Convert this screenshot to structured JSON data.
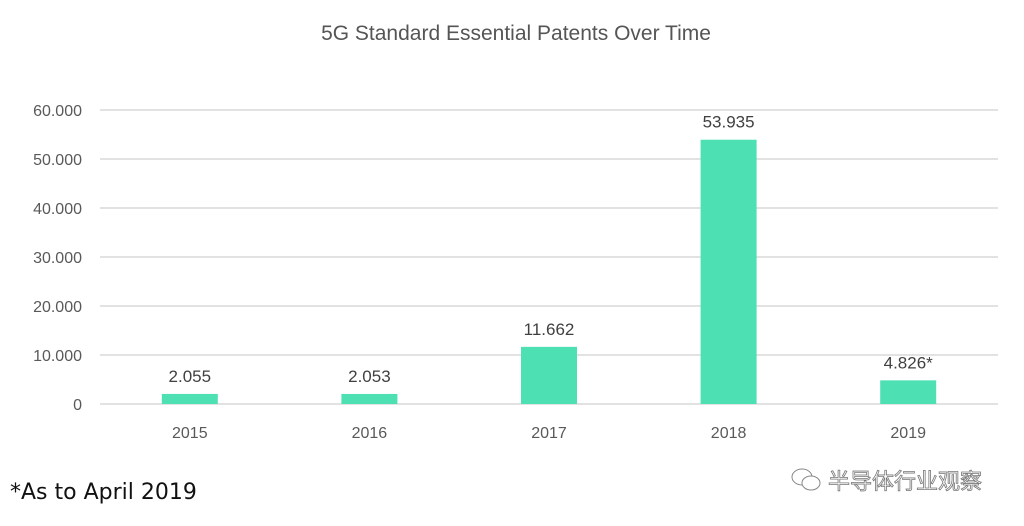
{
  "chart_data": {
    "type": "bar",
    "title": "5G Standard Essential Patents Over Time",
    "categories": [
      "2015",
      "2016",
      "2017",
      "2018",
      "2019"
    ],
    "values": [
      2.055,
      2.053,
      11.662,
      53.935,
      4.826
    ],
    "data_labels": [
      "2.055",
      "2.053",
      "11.662",
      "53.935",
      "4.826*"
    ],
    "ylim": [
      0,
      60
    ],
    "yticks": [
      0,
      10,
      20,
      30,
      40,
      50,
      60
    ],
    "ytick_labels": [
      "0",
      "10.000",
      "20.000",
      "30.000",
      "40.000",
      "50.000",
      "60.000"
    ],
    "xlabel": "",
    "ylabel": "",
    "grid": true,
    "bar_color": "#4ce0b3"
  },
  "footnote": "*As to April 2019",
  "watermark": {
    "text": "半导体行业观察",
    "icon": "wechat-icon"
  }
}
